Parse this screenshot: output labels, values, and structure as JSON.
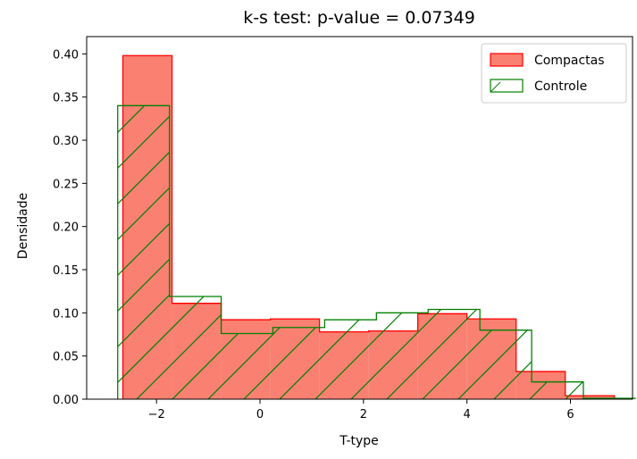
{
  "chart_data": {
    "type": "histogram",
    "title": "k-s test: p-value = 0.07349",
    "xlabel": "T-type",
    "ylabel": "Densidade",
    "xlim": [
      -3.35,
      7.2
    ],
    "ylim": [
      0,
      0.42
    ],
    "xticks": [
      -2,
      0,
      2,
      4,
      6
    ],
    "xtick_labels": [
      "−2",
      "0",
      "2",
      "4",
      "6"
    ],
    "yticks": [
      0.0,
      0.05,
      0.1,
      0.15,
      0.2,
      0.25,
      0.3,
      0.35,
      0.4
    ],
    "ytick_labels": [
      "0.00",
      "0.05",
      "0.10",
      "0.15",
      "0.20",
      "0.25",
      "0.30",
      "0.35",
      "0.40"
    ],
    "grid": false,
    "legend_position": "top-right",
    "series": [
      {
        "name": "Compactas",
        "style": "filled",
        "face_color": "#fa8072",
        "edge_color": "#ff0000",
        "bin_edges": [
          -2.65,
          -1.7,
          -0.75,
          0.2,
          1.15,
          2.1,
          3.05,
          4.0,
          4.95,
          5.9,
          6.85
        ],
        "values": [
          0.398,
          0.111,
          0.092,
          0.093,
          0.078,
          0.079,
          0.099,
          0.093,
          0.032,
          0.004
        ]
      },
      {
        "name": "Controle",
        "style": "hatched-outline",
        "edge_color": "#008000",
        "hatch": "/",
        "bin_edges": [
          -2.75,
          -1.75,
          -0.75,
          0.25,
          1.25,
          2.25,
          3.25,
          4.25,
          5.25,
          6.25,
          7.25
        ],
        "values": [
          0.34,
          0.119,
          0.076,
          0.083,
          0.092,
          0.1,
          0.104,
          0.08,
          0.02,
          0.001
        ]
      }
    ]
  }
}
